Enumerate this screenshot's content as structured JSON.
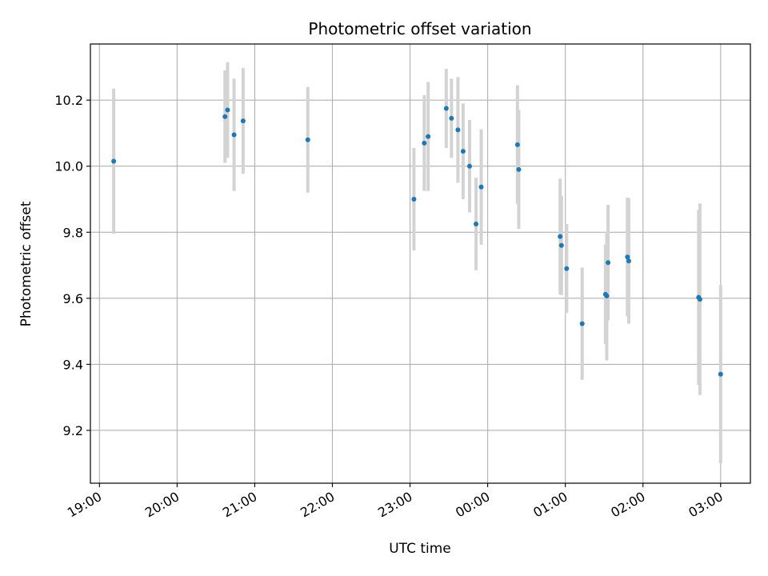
{
  "chart_data": {
    "type": "scatter",
    "title": "Photometric offset variation",
    "xlabel": "UTC time",
    "ylabel": "Photometric offset",
    "grid": true,
    "marker_color": "#1f77b4",
    "errorbar_color": "#d3d3d3",
    "x_axis": {
      "start": "19:00",
      "ticks": [
        "19:00",
        "20:00",
        "21:00",
        "22:00",
        "23:00",
        "00:00",
        "01:00",
        "02:00",
        "03:00"
      ],
      "range": [
        "18:53",
        "03:23"
      ]
    },
    "y_axis": {
      "ticks": [
        "9.2",
        "9.4",
        "9.6",
        "9.8",
        "10.0",
        "10.2"
      ],
      "ylim": [
        9.04,
        10.37
      ]
    },
    "points": [
      {
        "x": "19:11",
        "y": 10.015,
        "yerr": 0.22
      },
      {
        "x": "20:37",
        "y": 10.15,
        "yerr": 0.14
      },
      {
        "x": "20:39",
        "y": 10.17,
        "yerr": 0.145
      },
      {
        "x": "20:44",
        "y": 10.095,
        "yerr": 0.17
      },
      {
        "x": "20:51",
        "y": 10.137,
        "yerr": 0.16
      },
      {
        "x": "21:41",
        "y": 10.08,
        "yerr": 0.16
      },
      {
        "x": "23:03",
        "y": 9.9,
        "yerr": 0.155
      },
      {
        "x": "23:11",
        "y": 10.07,
        "yerr": 0.145
      },
      {
        "x": "23:14",
        "y": 10.09,
        "yerr": 0.165
      },
      {
        "x": "23:28",
        "y": 10.175,
        "yerr": 0.12
      },
      {
        "x": "23:32",
        "y": 10.145,
        "yerr": 0.12
      },
      {
        "x": "23:37",
        "y": 10.11,
        "yerr": 0.16
      },
      {
        "x": "23:41",
        "y": 10.045,
        "yerr": 0.145
      },
      {
        "x": "23:46",
        "y": 10.0,
        "yerr": 0.14
      },
      {
        "x": "23:51",
        "y": 9.825,
        "yerr": 0.14
      },
      {
        "x": "23:55",
        "y": 9.937,
        "yerr": 0.175
      },
      {
        "x": "00:23",
        "y": 10.065,
        "yerr": 0.18
      },
      {
        "x": "00:24",
        "y": 9.99,
        "yerr": 0.18
      },
      {
        "x": "00:56",
        "y": 9.787,
        "yerr": 0.175
      },
      {
        "x": "00:57",
        "y": 9.76,
        "yerr": 0.15
      },
      {
        "x": "01:01",
        "y": 9.69,
        "yerr": 0.135
      },
      {
        "x": "01:13",
        "y": 9.523,
        "yerr": 0.17
      },
      {
        "x": "01:31",
        "y": 9.612,
        "yerr": 0.15
      },
      {
        "x": "01:32",
        "y": 9.607,
        "yerr": 0.195
      },
      {
        "x": "01:33",
        "y": 9.708,
        "yerr": 0.175
      },
      {
        "x": "01:48",
        "y": 9.725,
        "yerr": 0.18
      },
      {
        "x": "01:49",
        "y": 9.713,
        "yerr": 0.19
      },
      {
        "x": "02:43",
        "y": 9.603,
        "yerr": 0.265
      },
      {
        "x": "02:44",
        "y": 9.597,
        "yerr": 0.29
      },
      {
        "x": "03:00",
        "y": 9.37,
        "yerr": 0.27
      }
    ]
  }
}
